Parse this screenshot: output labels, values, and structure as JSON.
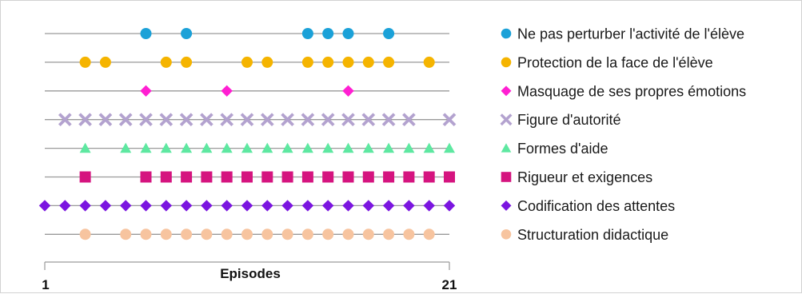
{
  "chart_data": {
    "type": "scatter",
    "title": "",
    "xlabel": "Episodes",
    "ylabel": "",
    "xlim": [
      1,
      21
    ],
    "x_tick_labels": [
      "1",
      "21"
    ],
    "grid": false,
    "legend_position": "right",
    "series": [
      {
        "name": "Ne pas perturber l'activité de l'élève",
        "color": "#1ba1d8",
        "marker": "circle",
        "x": [
          6,
          8,
          14,
          15,
          16,
          18
        ]
      },
      {
        "name": "Protection de la face de l'élève",
        "color": "#f5b400",
        "marker": "circle",
        "x": [
          3,
          4,
          7,
          8,
          11,
          12,
          14,
          15,
          16,
          17,
          18,
          20
        ]
      },
      {
        "name": "Masquage de ses propres émotions",
        "color": "#ff1fd2",
        "marker": "diamond",
        "x": [
          6,
          10,
          16
        ]
      },
      {
        "name": "Figure d'autorité",
        "color": "#b3a2cf",
        "marker": "x",
        "x": [
          2,
          3,
          4,
          5,
          6,
          7,
          8,
          9,
          10,
          11,
          12,
          13,
          14,
          15,
          16,
          17,
          18,
          19,
          21
        ]
      },
      {
        "name": "Formes d'aide",
        "color": "#5ee8a1",
        "marker": "triangle",
        "x": [
          3,
          5,
          6,
          7,
          8,
          9,
          10,
          11,
          12,
          13,
          14,
          15,
          16,
          17,
          18,
          19,
          20,
          21
        ]
      },
      {
        "name": "Rigueur et exigences",
        "color": "#d5147f",
        "marker": "square",
        "x": [
          3,
          6,
          7,
          8,
          9,
          10,
          11,
          12,
          13,
          14,
          15,
          16,
          17,
          18,
          19,
          20,
          21
        ]
      },
      {
        "name": "Codification des attentes",
        "color": "#7b15e0",
        "marker": "diamond",
        "x": [
          1,
          2,
          3,
          4,
          5,
          6,
          7,
          8,
          9,
          10,
          11,
          12,
          13,
          14,
          15,
          16,
          17,
          18,
          19,
          20,
          21
        ]
      },
      {
        "name": "Structuration didactique",
        "color": "#f7c49f",
        "marker": "circle",
        "x": [
          3,
          5,
          6,
          7,
          8,
          9,
          10,
          11,
          12,
          13,
          14,
          15,
          16,
          17,
          18,
          19,
          20
        ]
      }
    ]
  }
}
